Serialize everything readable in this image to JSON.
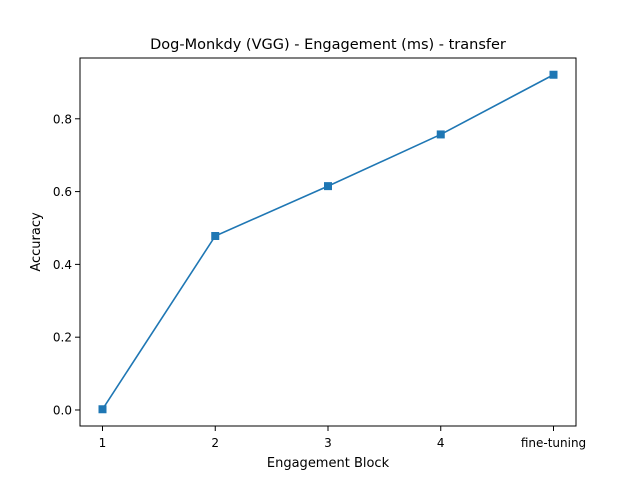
{
  "chart_data": {
    "type": "line",
    "title": "Dog-Monkdy (VGG) - Engagement (ms) - transfer",
    "xlabel": "Engagement Block",
    "ylabel": "Accuracy",
    "categories": [
      "1",
      "2",
      "3",
      "4",
      "fine-tuning"
    ],
    "series": [
      {
        "name": "Accuracy",
        "values": [
          0.002,
          0.478,
          0.615,
          0.757,
          0.921
        ],
        "marker": "square"
      }
    ],
    "yticks": [
      0.0,
      0.2,
      0.4,
      0.6,
      0.8
    ],
    "ytick_labels": [
      "0.0",
      "0.2",
      "0.4",
      "0.6",
      "0.8"
    ],
    "ylim": [
      -0.044,
      0.967
    ],
    "grid": false,
    "colors": {
      "series": "#1f77b4",
      "axis": "#000000"
    }
  }
}
